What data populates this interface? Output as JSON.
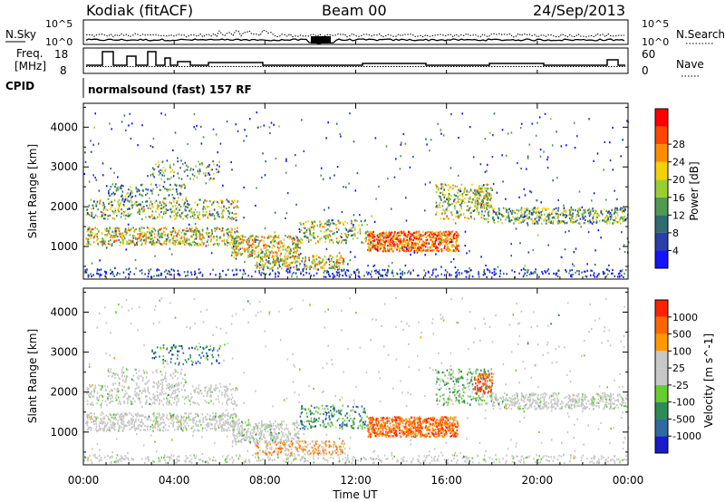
{
  "header": {
    "station": "Kodiak (fitACF)",
    "beam": "Beam 00",
    "date": "24/Sep/2013"
  },
  "noise_panel": {
    "left_label": "N.Sky",
    "right_label": "N.Search",
    "left_ticks": [
      "10^5",
      "10^0"
    ],
    "right_ticks": [
      "10^5",
      "10^0"
    ]
  },
  "freq_panel": {
    "left_label_1": "Freq.",
    "left_label_2": "[MHz]",
    "left_ticks": [
      "18",
      "8"
    ],
    "right_label": "Nave",
    "right_ticks": [
      "60",
      "0"
    ]
  },
  "cpid_panel": {
    "label": "CPID",
    "text": "normalsound (fast) 157 RF"
  },
  "chart_data": [
    {
      "type": "heatmap",
      "name": "Power",
      "ylabel": "Slant Range [km]",
      "yticks": [
        1000,
        2000,
        3000,
        4000
      ],
      "ylim": [
        180,
        4600
      ],
      "xlim_hours": [
        0,
        24
      ],
      "colorbar": {
        "label": "Power [dB]",
        "ticks": [
          "4",
          "8",
          "12",
          "16",
          "20",
          "24",
          "28"
        ],
        "colors": [
          "#1414ff",
          "#2a3fa8",
          "#2f6b70",
          "#4f9a4f",
          "#9acd32",
          "#f5d10a",
          "#ff8c00",
          "#ff4500",
          "#ff0000"
        ]
      }
    },
    {
      "type": "heatmap",
      "name": "Velocity",
      "ylabel": "Slant Range [km]",
      "yticks": [
        1000,
        2000,
        3000,
        4000
      ],
      "ylim": [
        180,
        4600
      ],
      "xlim_hours": [
        0,
        24
      ],
      "colorbar": {
        "label": "Velocity [m s^-1]",
        "ticks": [
          "1000",
          "500",
          "100",
          "25",
          "-25",
          "-100",
          "-500",
          "-1000"
        ],
        "colors": [
          "#1a1acc",
          "#2f6b9e",
          "#2e8b57",
          "#66cc33",
          "#c8c8c8",
          "#c8c8c8",
          "#ff9900",
          "#ff6600",
          "#ff2200"
        ]
      }
    }
  ],
  "time_axis": {
    "ticks": [
      "00:00",
      "04:00",
      "08:00",
      "12:00",
      "16:00",
      "20:00",
      "00:00"
    ],
    "label": "Time UT"
  }
}
